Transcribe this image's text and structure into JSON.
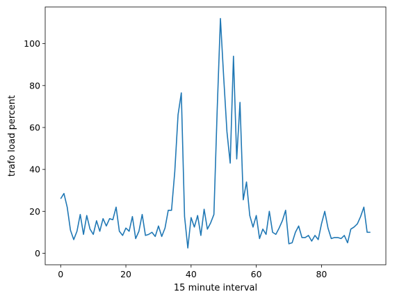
{
  "chart_data": {
    "type": "line",
    "title": "",
    "xlabel": "15 minute interval",
    "ylabel": "trafo load percent",
    "xlim": [
      -4.75,
      99.75
    ],
    "ylim": [
      -5.5,
      117.5
    ],
    "xticks": [
      0,
      20,
      40,
      60,
      80
    ],
    "yticks": [
      0,
      20,
      40,
      60,
      80,
      100
    ],
    "grid": false,
    "legend": "none",
    "series": [
      {
        "color": "#1f77b4",
        "x": [
          0,
          1,
          2,
          3,
          4,
          5,
          6,
          7,
          8,
          9,
          10,
          11,
          12,
          13,
          14,
          15,
          16,
          17,
          18,
          19,
          20,
          21,
          22,
          23,
          24,
          25,
          26,
          27,
          28,
          29,
          30,
          31,
          32,
          33,
          34,
          35,
          36,
          37,
          38,
          39,
          40,
          41,
          42,
          43,
          44,
          45,
          46,
          47,
          48,
          49,
          50,
          51,
          52,
          53,
          54,
          55,
          56,
          57,
          58,
          59,
          60,
          61,
          62,
          63,
          64,
          65,
          66,
          67,
          68,
          69,
          70,
          71,
          72,
          73,
          74,
          75,
          76,
          77,
          78,
          79,
          80,
          81,
          82,
          83,
          84,
          85,
          86,
          87,
          88,
          89,
          90,
          91,
          92,
          93,
          94,
          95
        ],
        "y": [
          26,
          28.5,
          22,
          11,
          6.5,
          10.5,
          18.5,
          9,
          18,
          11.5,
          9,
          15.5,
          10.5,
          16.5,
          13,
          16.5,
          16,
          22,
          10.5,
          8.5,
          12,
          10.5,
          17.5,
          7,
          10.5,
          18.5,
          8.5,
          9,
          10,
          8,
          13,
          8,
          12,
          20.5,
          20.5,
          39,
          66,
          76.5,
          17.5,
          2.5,
          17,
          12.5,
          18,
          8.5,
          21,
          11.5,
          14.5,
          18.5,
          68,
          112,
          84,
          58,
          43,
          94,
          45,
          72,
          25.5,
          34,
          18,
          12.5,
          18,
          7,
          11.5,
          9,
          20,
          10,
          9,
          12,
          15.5,
          20.5,
          4.5,
          5,
          10,
          13,
          7.5,
          7.5,
          8.5,
          5.8,
          8.5,
          6.5,
          14,
          20,
          12,
          7,
          7.5,
          7.5,
          7,
          8.5,
          5,
          11.5,
          12.5,
          14,
          17.5,
          22,
          10,
          10
        ]
      }
    ]
  }
}
